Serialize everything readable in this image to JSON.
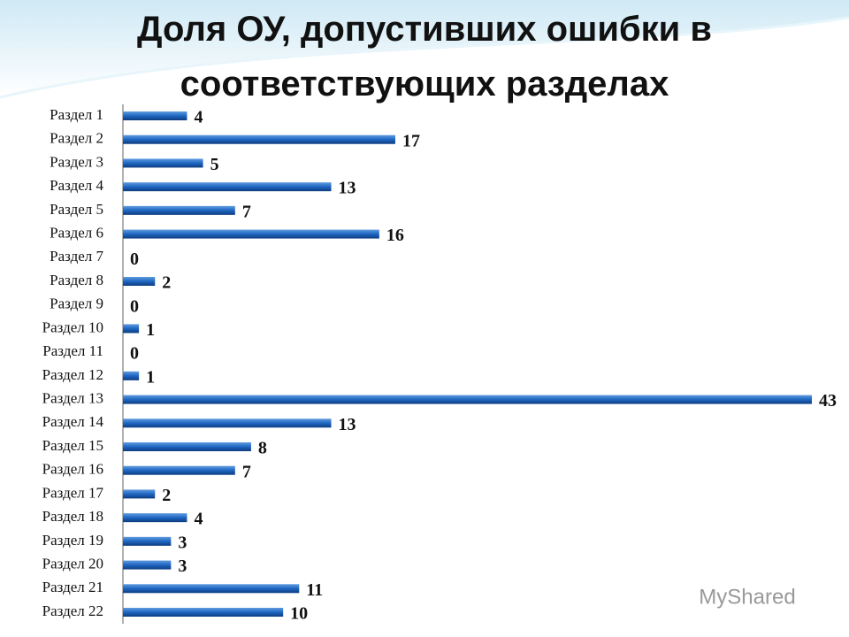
{
  "chart_data": {
    "type": "bar",
    "orientation": "horizontal",
    "title": "Доля  ОУ, допустивших ошибки в соответствующих разделах",
    "categories": [
      "Раздел 1",
      "Раздел 2",
      "Раздел 3",
      "Раздел 4",
      "Раздел 5",
      "Раздел 6",
      "Раздел 7",
      "Раздел 8",
      "Раздел 9",
      "Раздел 10",
      "Раздел 11",
      "Раздел 12",
      "Раздел 13",
      "Раздел 14",
      "Раздел 15",
      "Раздел 16",
      "Раздел 17",
      "Раздел 18",
      "Раздел 19",
      "Раздел 20",
      "Раздел 21",
      "Раздел 22"
    ],
    "values": [
      4,
      17,
      5,
      13,
      7,
      16,
      0,
      2,
      0,
      1,
      0,
      1,
      43,
      13,
      8,
      7,
      2,
      4,
      3,
      3,
      11,
      10
    ],
    "color": "#1f66c1",
    "xlim": [
      0,
      43
    ],
    "watermark": "MyShared"
  }
}
